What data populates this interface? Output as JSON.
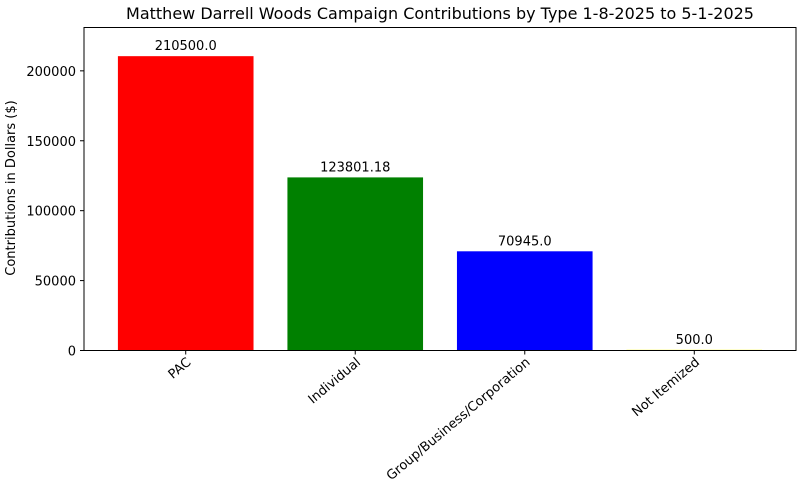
{
  "chart_data": {
    "type": "bar",
    "title": "Matthew Darrell Woods Campaign Contributions by Type 1-8-2025 to 5-1-2025",
    "xlabel": "",
    "ylabel": "Contributions in Dollars ($)",
    "categories": [
      "PAC",
      "Individual",
      "Group/Business/Corporation",
      "Not Itemized"
    ],
    "values": [
      210500.0,
      123801.18,
      70945.0,
      500.0
    ],
    "value_labels": [
      "210500.0",
      "123801.18",
      "70945.0",
      "500.0"
    ],
    "colors": [
      "#ff0000",
      "#008000",
      "#0000ff",
      "#ffff00"
    ],
    "ylim": [
      0,
      231000
    ],
    "yticks": [
      0,
      50000,
      100000,
      150000,
      200000
    ],
    "ytick_labels": [
      "0",
      "50000",
      "100000",
      "150000",
      "200000"
    ],
    "grid": false,
    "legend": "none"
  }
}
